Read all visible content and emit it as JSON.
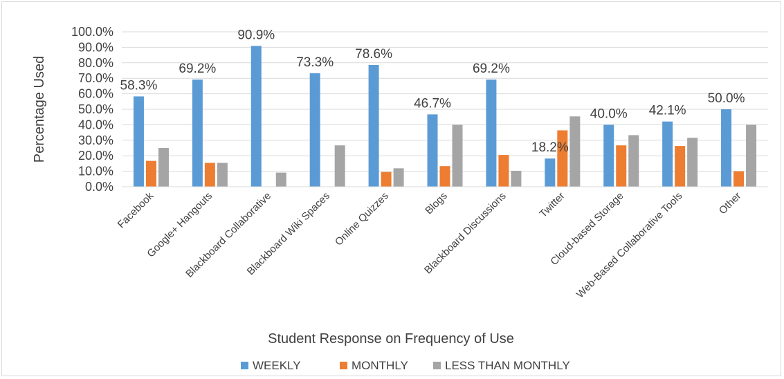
{
  "chart_data": {
    "type": "bar",
    "title": "",
    "xlabel": "Student Response on Frequency of Use",
    "ylabel": "Percentage Used",
    "ylim": [
      0,
      100
    ],
    "y_ticks": [
      "0.0%",
      "10.0%",
      "20.0%",
      "30.0%",
      "40.0%",
      "50.0%",
      "60.0%",
      "70.0%",
      "80.0%",
      "90.0%",
      "100.0%"
    ],
    "grid": true,
    "legend_position": "bottom",
    "categories": [
      "Facebook",
      "Google+ Hangouts",
      "Blackboard Collaborative",
      "Blackboard Wiki Spaces",
      "Online Quizzes",
      "Blogs",
      "Blackboard Discussions",
      "Twitter",
      "Cloud-based Storage",
      "Web-Based Collaborative Tools",
      "Other"
    ],
    "series": [
      {
        "name": "WEEKLY",
        "color": "#5b9bd5",
        "values": [
          58.3,
          69.2,
          90.9,
          73.3,
          78.6,
          46.7,
          69.2,
          18.2,
          40.0,
          42.1,
          50.0
        ]
      },
      {
        "name": "MONTHLY",
        "color": "#ed7d31",
        "values": [
          16.7,
          15.4,
          0,
          0,
          9.5,
          13.3,
          20.5,
          36.4,
          26.7,
          26.3,
          10.0
        ]
      },
      {
        "name": "LESS THAN MONTHLY",
        "color": "#a5a5a5",
        "values": [
          25.0,
          15.4,
          9.1,
          26.7,
          11.9,
          40.0,
          10.3,
          45.4,
          33.3,
          31.6,
          40.0
        ]
      }
    ],
    "data_labels": [
      "58.3%",
      "69.2%",
      "90.9%",
      "73.3%",
      "78.6%",
      "46.7%",
      "69.2%",
      "18.2%",
      "40.0%",
      "42.1%",
      "50.0%"
    ]
  }
}
